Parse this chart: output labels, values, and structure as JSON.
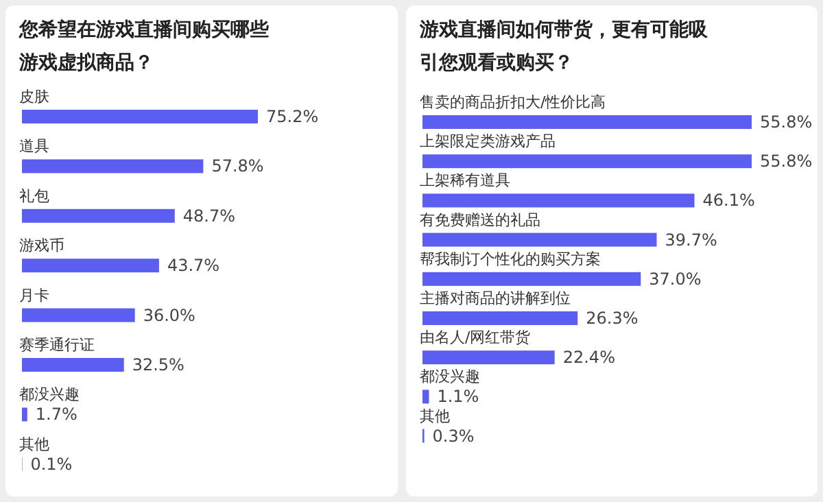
{
  "chart_data": [
    {
      "type": "bar",
      "orientation": "horizontal",
      "title": "您希望在游戏直播间购买哪些游戏虚拟商品？",
      "categories": [
        "皮肤",
        "道具",
        "礼包",
        "游戏币",
        "月卡",
        "赛季通行证",
        "都没兴趣",
        "其他"
      ],
      "values": [
        75.2,
        57.8,
        48.7,
        43.7,
        36.0,
        32.5,
        1.7,
        0.1
      ],
      "value_labels": [
        "75.2%",
        "57.8%",
        "48.7%",
        "43.7%",
        "36.0%",
        "32.5%",
        "1.7%",
        "0.1%"
      ],
      "color": "#5b5ef0"
    },
    {
      "type": "bar",
      "orientation": "horizontal",
      "title": "游戏直播间如何带货，更有可能吸引您观看或购买？",
      "categories": [
        "售卖的商品折扣大/性价比高",
        "上架限定类游戏产品",
        "上架稀有道具",
        "有免费赠送的礼品",
        "帮我制订个性化的购买方案",
        "主播对商品的讲解到位",
        "由名人/网红带货",
        "都没兴趣",
        "其他"
      ],
      "values": [
        55.8,
        55.8,
        46.1,
        39.7,
        37.0,
        26.3,
        22.4,
        1.1,
        0.3
      ],
      "value_labels": [
        "55.8%",
        "55.8%",
        "46.1%",
        "39.7%",
        "37.0%",
        "26.3%",
        "22.4%",
        "1.1%",
        "0.3%"
      ],
      "color": "#5b5ef0"
    }
  ]
}
